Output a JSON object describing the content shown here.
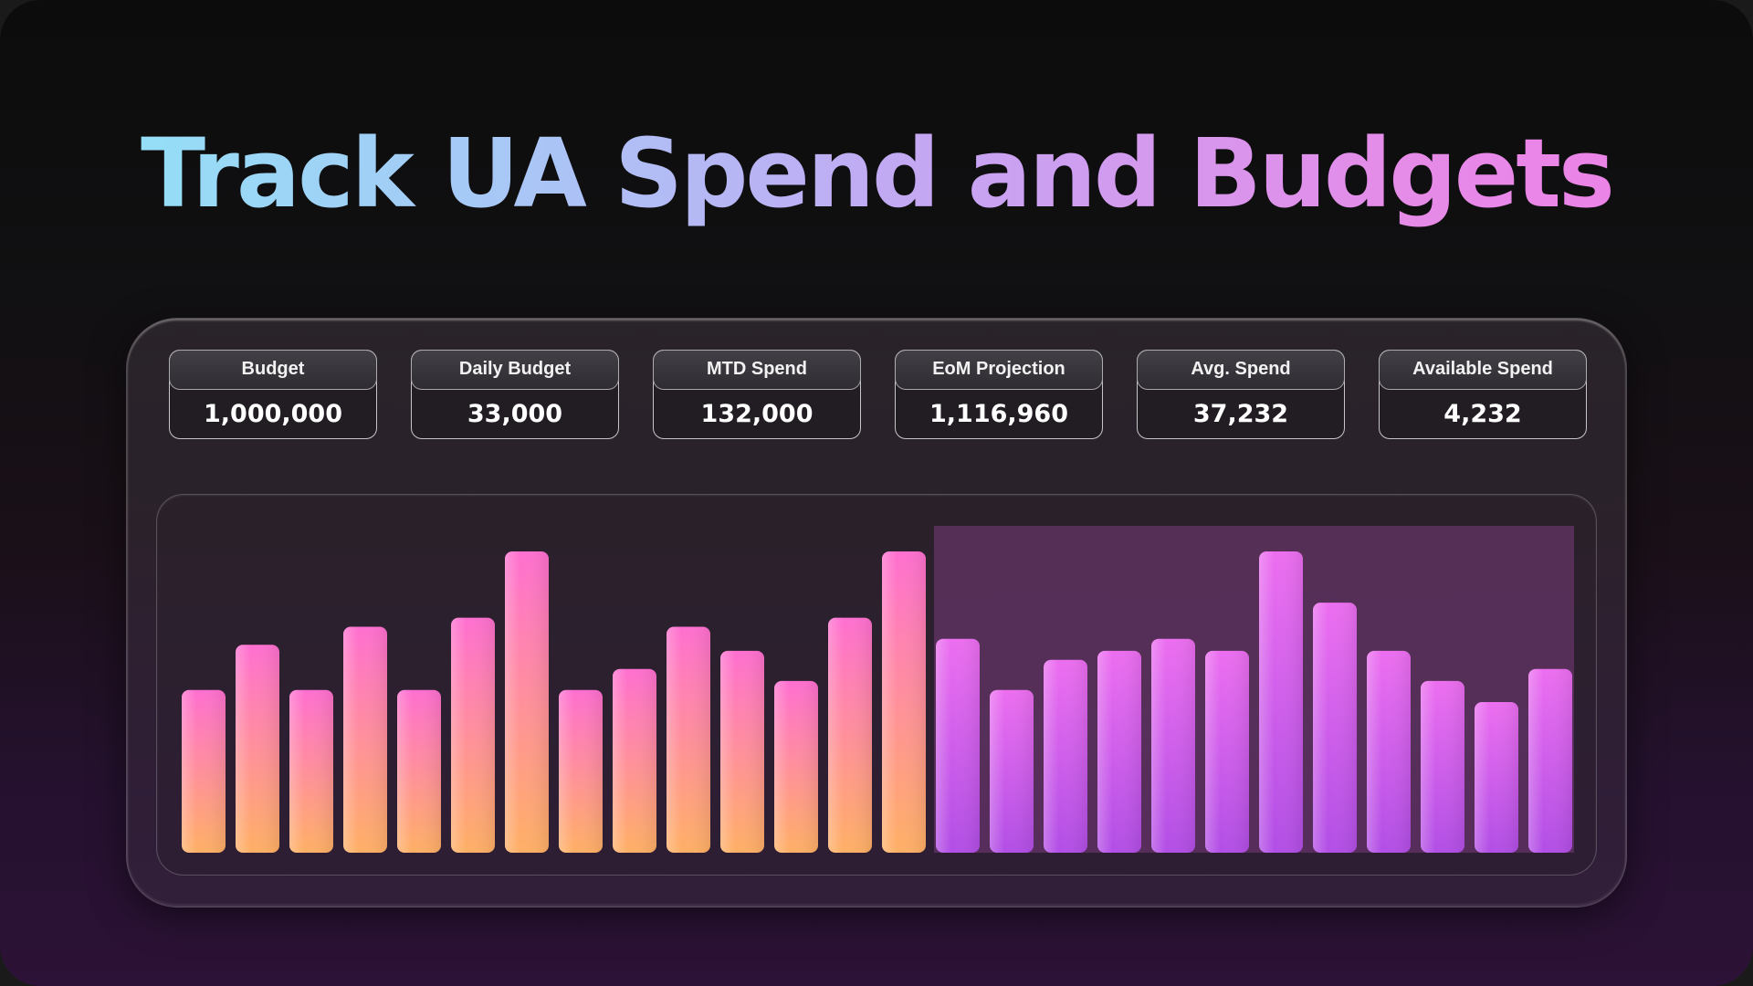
{
  "headline": "Track UA Spend and Budgets",
  "kpis": [
    {
      "label": "Budget",
      "value": "1,000,000"
    },
    {
      "label": "Daily Budget",
      "value": "33,000"
    },
    {
      "label": "MTD Spend",
      "value": "132,000"
    },
    {
      "label": "EoM Projection",
      "value": "1,116,960"
    },
    {
      "label": "Avg. Spend",
      "value": "37,232"
    },
    {
      "label": "Available Spend",
      "value": "4,232"
    }
  ],
  "colors": {
    "actual_top": "#ff6fd0",
    "actual_bottom": "#ffb065",
    "projected_top": "#ec6ef0",
    "projected_bottom": "#b24ee6",
    "projection_highlight": "#7a3d7c"
  },
  "chart_data": {
    "type": "bar",
    "title": "",
    "xlabel": "",
    "ylabel": "",
    "ylim": [
      0,
      1
    ],
    "grid": false,
    "series": [
      {
        "values": [
          0.54,
          0.69,
          0.54,
          0.75,
          0.54,
          0.78,
          1.0,
          0.54,
          0.61,
          0.75,
          0.67,
          0.57,
          0.78,
          1.0
        ]
      },
      {
        "values": [
          0.71,
          0.54,
          0.64,
          0.67,
          0.71,
          0.67,
          1.0,
          0.83,
          0.67,
          0.57,
          0.5,
          0.61
        ]
      }
    ],
    "highlight_region": "projected days"
  }
}
